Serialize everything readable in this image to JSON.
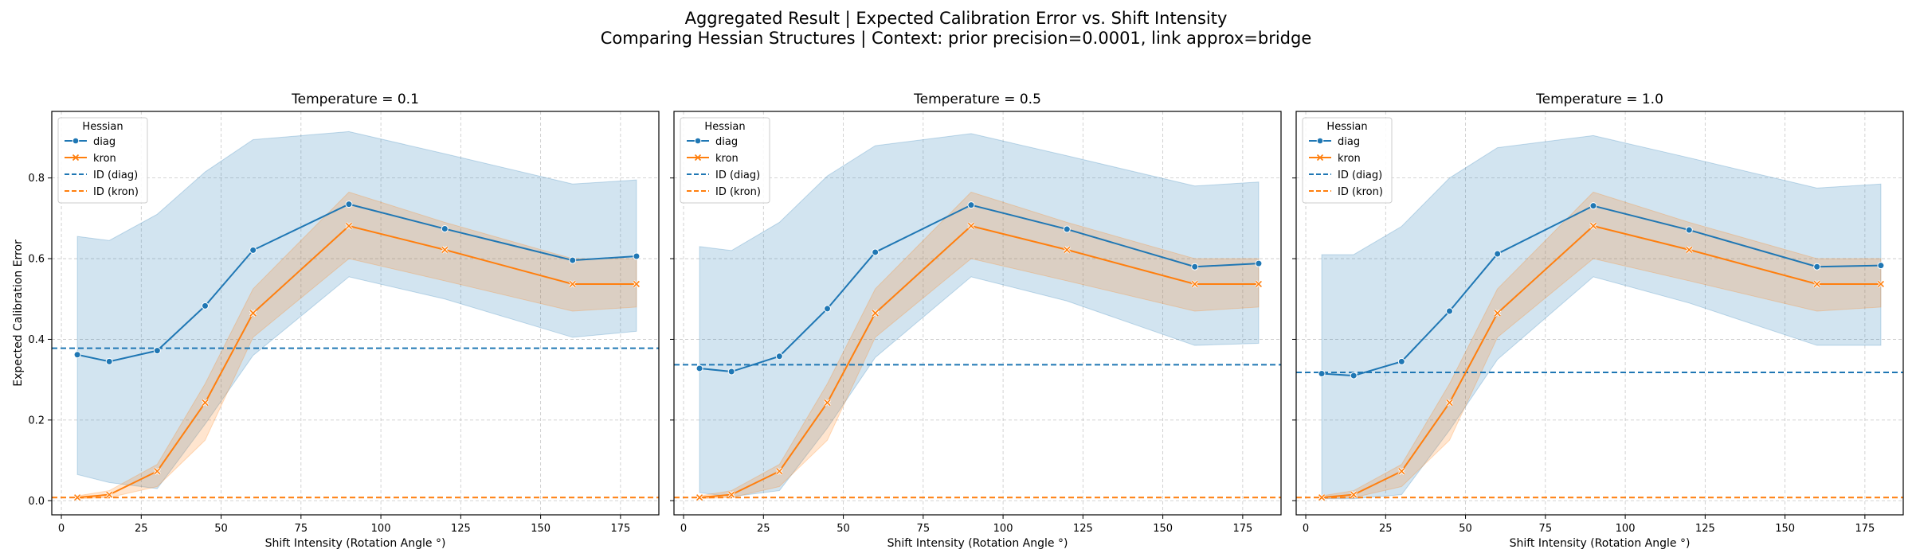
{
  "figure": {
    "title_line1": "Aggregated Result | Expected Calibration Error vs. Shift Intensity",
    "title_line2": "Comparing Hessian Structures | Context: prior precision=0.0001, link approx=bridge"
  },
  "colors": {
    "diag": "#1f77b4",
    "kron": "#ff7f0e",
    "grid": "#b0b0b0"
  },
  "chart_data": [
    {
      "type": "line",
      "title": "Temperature = 0.1",
      "xlabel": "Shift Intensity (Rotation Angle °)",
      "ylabel": "Expected Calibration Error",
      "xlim": [
        -3,
        187
      ],
      "ylim": [
        -0.035,
        0.965
      ],
      "xticks": [
        0,
        25,
        50,
        75,
        100,
        125,
        150,
        175
      ],
      "yticks": [
        0.0,
        0.2,
        0.4,
        0.6,
        0.8
      ],
      "grid": true,
      "legend_title": "Hessian",
      "legend_position": "top-left",
      "x": [
        5,
        15,
        30,
        45,
        60,
        90,
        120,
        160,
        180
      ],
      "series": [
        {
          "name": "diag",
          "marker": "circle",
          "values": [
            0.362,
            0.345,
            0.372,
            0.483,
            0.621,
            0.735,
            0.674,
            0.596,
            0.606
          ],
          "ci_low": [
            0.065,
            0.045,
            0.03,
            0.19,
            0.36,
            0.555,
            0.5,
            0.405,
            0.42
          ],
          "ci_high": [
            0.655,
            0.645,
            0.71,
            0.815,
            0.895,
            0.915,
            0.86,
            0.785,
            0.795
          ]
        },
        {
          "name": "kron",
          "marker": "x",
          "values": [
            0.008,
            0.015,
            0.073,
            0.243,
            0.465,
            0.681,
            0.622,
            0.537,
            0.537
          ],
          "ci_low": [
            0.005,
            0.008,
            0.035,
            0.15,
            0.405,
            0.6,
            0.545,
            0.47,
            0.48
          ],
          "ci_high": [
            0.012,
            0.025,
            0.09,
            0.29,
            0.525,
            0.765,
            0.69,
            0.6,
            0.6
          ]
        }
      ],
      "reference_lines": [
        {
          "name": "ID (diag)",
          "series": "diag",
          "value": 0.378
        },
        {
          "name": "ID (kron)",
          "series": "kron",
          "value": 0.008
        }
      ]
    },
    {
      "type": "line",
      "title": "Temperature = 0.5",
      "xlabel": "Shift Intensity (Rotation Angle °)",
      "ylabel": "",
      "xlim": [
        -3,
        187
      ],
      "ylim": [
        -0.035,
        0.965
      ],
      "xticks": [
        0,
        25,
        50,
        75,
        100,
        125,
        150,
        175
      ],
      "yticks": [
        0.0,
        0.2,
        0.4,
        0.6,
        0.8
      ],
      "grid": true,
      "legend_title": "Hessian",
      "legend_position": "top-left",
      "x": [
        5,
        15,
        30,
        45,
        60,
        90,
        120,
        160,
        180
      ],
      "series": [
        {
          "name": "diag",
          "marker": "circle",
          "values": [
            0.328,
            0.32,
            0.358,
            0.476,
            0.616,
            0.733,
            0.673,
            0.58,
            0.588
          ],
          "ci_low": [
            0.02,
            0.01,
            0.025,
            0.18,
            0.355,
            0.555,
            0.495,
            0.385,
            0.39
          ],
          "ci_high": [
            0.63,
            0.62,
            0.69,
            0.805,
            0.88,
            0.91,
            0.855,
            0.78,
            0.79
          ]
        },
        {
          "name": "kron",
          "marker": "x",
          "values": [
            0.008,
            0.015,
            0.073,
            0.243,
            0.465,
            0.681,
            0.622,
            0.537,
            0.537
          ],
          "ci_low": [
            0.005,
            0.008,
            0.035,
            0.15,
            0.405,
            0.6,
            0.545,
            0.47,
            0.48
          ],
          "ci_high": [
            0.012,
            0.025,
            0.09,
            0.29,
            0.525,
            0.765,
            0.69,
            0.6,
            0.6
          ]
        }
      ],
      "reference_lines": [
        {
          "name": "ID (diag)",
          "series": "diag",
          "value": 0.337
        },
        {
          "name": "ID (kron)",
          "series": "kron",
          "value": 0.008
        }
      ]
    },
    {
      "type": "line",
      "title": "Temperature = 1.0",
      "xlabel": "Shift Intensity (Rotation Angle °)",
      "ylabel": "",
      "xlim": [
        -3,
        187
      ],
      "ylim": [
        -0.035,
        0.965
      ],
      "xticks": [
        0,
        25,
        50,
        75,
        100,
        125,
        150,
        175
      ],
      "yticks": [
        0.0,
        0.2,
        0.4,
        0.6,
        0.8
      ],
      "grid": true,
      "legend_title": "Hessian",
      "legend_position": "top-left",
      "x": [
        5,
        15,
        30,
        45,
        60,
        90,
        120,
        160,
        180
      ],
      "series": [
        {
          "name": "diag",
          "marker": "circle",
          "values": [
            0.315,
            0.31,
            0.345,
            0.47,
            0.612,
            0.731,
            0.671,
            0.58,
            0.583
          ],
          "ci_low": [
            0.005,
            0.005,
            0.015,
            0.175,
            0.35,
            0.555,
            0.49,
            0.385,
            0.385
          ],
          "ci_high": [
            0.61,
            0.61,
            0.68,
            0.8,
            0.875,
            0.905,
            0.85,
            0.775,
            0.785
          ]
        },
        {
          "name": "kron",
          "marker": "x",
          "values": [
            0.008,
            0.015,
            0.073,
            0.243,
            0.465,
            0.681,
            0.622,
            0.537,
            0.537
          ],
          "ci_low": [
            0.005,
            0.008,
            0.035,
            0.15,
            0.405,
            0.6,
            0.545,
            0.47,
            0.48
          ],
          "ci_high": [
            0.012,
            0.025,
            0.09,
            0.29,
            0.525,
            0.765,
            0.69,
            0.6,
            0.6
          ]
        }
      ],
      "reference_lines": [
        {
          "name": "ID (diag)",
          "series": "diag",
          "value": 0.318
        },
        {
          "name": "ID (kron)",
          "series": "kron",
          "value": 0.008
        }
      ]
    }
  ]
}
